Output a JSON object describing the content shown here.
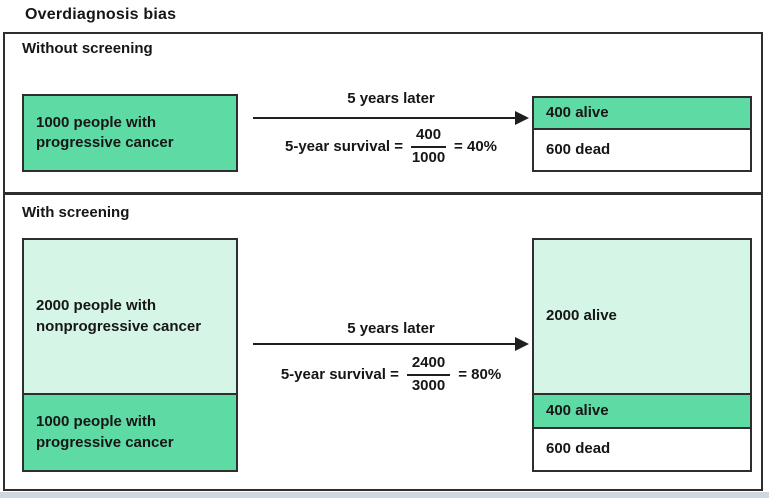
{
  "title": "Overdiagnosis bias",
  "colors": {
    "progressive-green": "#5edaa5",
    "nonprogressive-green": "#d5f5e7",
    "border-dark": "#2e2e2e",
    "text": "#161616",
    "footer-strip": "#cfd8de"
  },
  "sections": [
    {
      "label": "Without screening",
      "arrow_label": "5 years later",
      "formula": {
        "lhs": "5-year survival =",
        "numerator": "400",
        "denominator": "1000",
        "result": "= 40%"
      },
      "population_boxes": [
        {
          "line1": "1000 people with",
          "line2": "progressive cancer"
        }
      ],
      "outcome_boxes": [
        {
          "label": "400 alive"
        },
        {
          "label": "600 dead"
        }
      ]
    },
    {
      "label": "With screening",
      "arrow_label": "5 years later",
      "formula": {
        "lhs": "5-year survival =",
        "numerator": "2400",
        "denominator": "3000",
        "result": "= 80%"
      },
      "population_boxes": [
        {
          "line1": "2000 people with",
          "line2": "nonprogressive cancer"
        },
        {
          "line1": "1000 people with",
          "line2": "progressive cancer"
        }
      ],
      "outcome_boxes": [
        {
          "label": "2000 alive"
        },
        {
          "label": "400 alive"
        },
        {
          "label": "600 dead"
        }
      ]
    }
  ]
}
